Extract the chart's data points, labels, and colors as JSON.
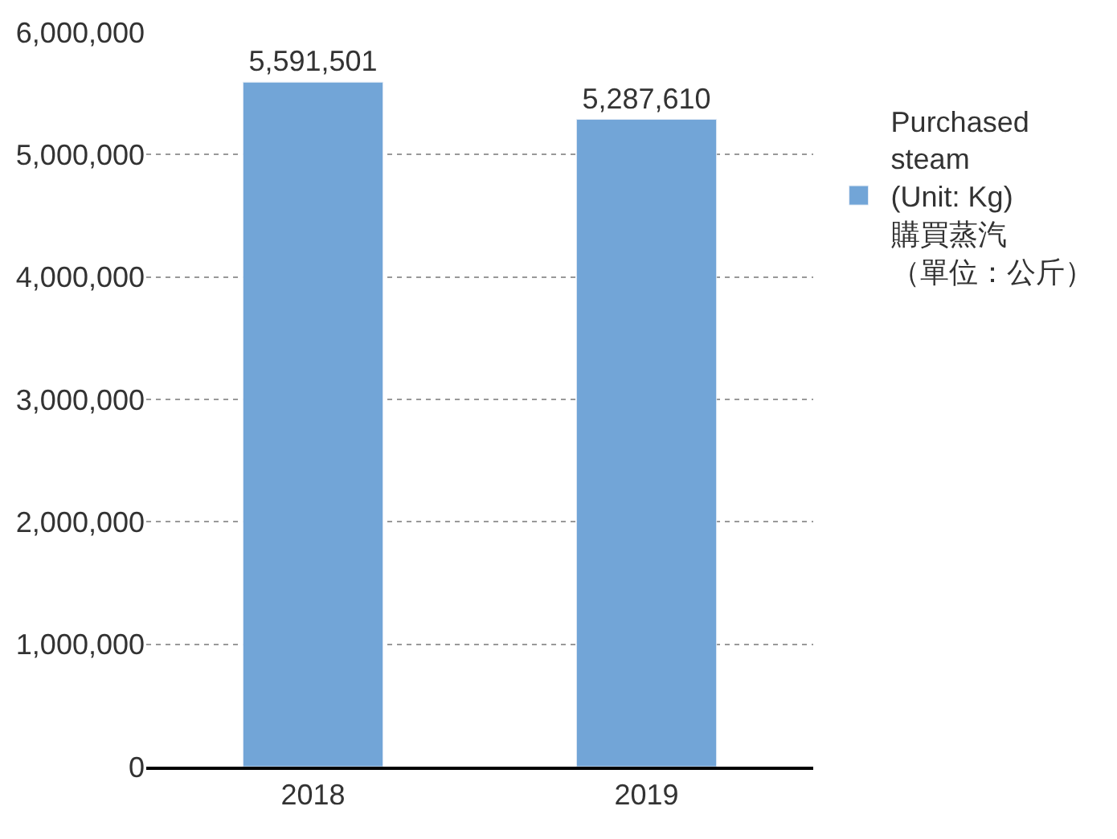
{
  "chart_data": {
    "type": "bar",
    "categories": [
      "2018",
      "2019"
    ],
    "series": [
      {
        "name": "Purchased\nsteam\n(Unit: Kg)\n購買蒸汽（單位：公斤）",
        "color": "#72a5d7",
        "values": [
          5591501,
          5287610
        ],
        "value_labels": [
          "5,591,501",
          "5,287,610"
        ]
      }
    ],
    "ylim": [
      0,
      6000000
    ],
    "yticks": [
      {
        "value": 0,
        "label": "0"
      },
      {
        "value": 1000000,
        "label": "1,000,000"
      },
      {
        "value": 2000000,
        "label": "2,000,000"
      },
      {
        "value": 3000000,
        "label": "3,000,000"
      },
      {
        "value": 4000000,
        "label": "4,000,000"
      },
      {
        "value": 5000000,
        "label": "5,000,000"
      },
      {
        "value": 6000000,
        "label": "6,000,000"
      }
    ],
    "grid": "y",
    "legend": "top right"
  }
}
